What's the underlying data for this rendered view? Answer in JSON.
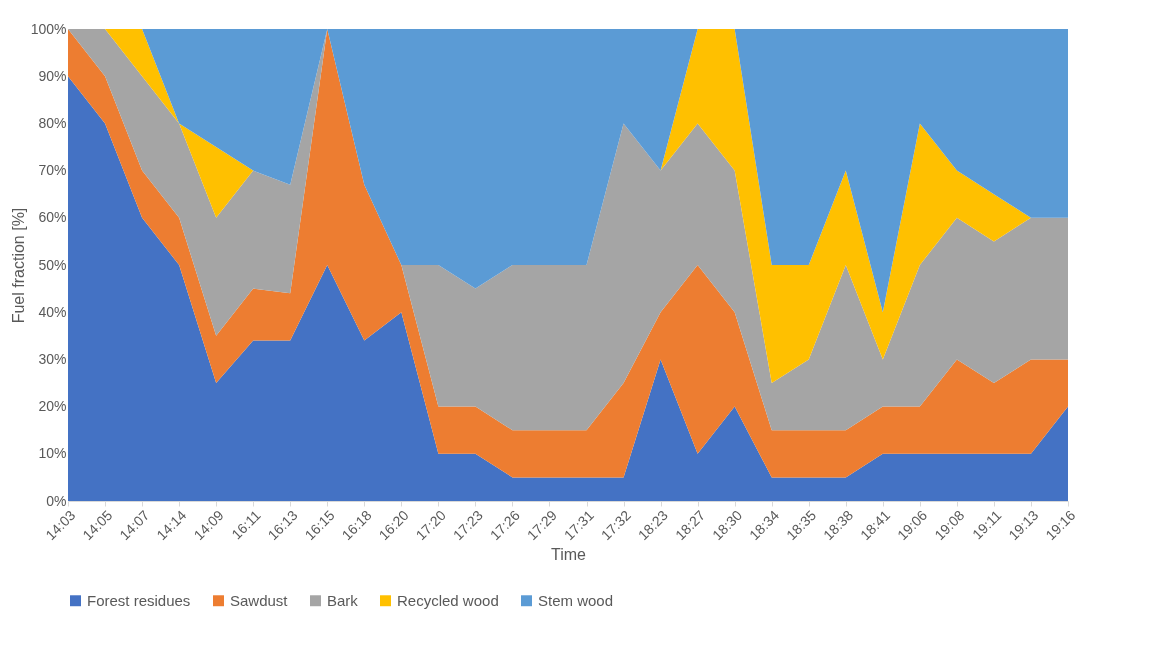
{
  "chart_data": {
    "type": "area",
    "stacked": true,
    "xlabel": "Time",
    "ylabel": "Fuel fraction [%]",
    "legend": "bottom",
    "categories": [
      "14:03",
      "14:05",
      "14:07",
      "14:14",
      "14:09",
      "16:11",
      "16:13",
      "16:15",
      "16:18",
      "16:20",
      "17:20",
      "17:23",
      "17:26",
      "17:29",
      "17:31",
      "17:32",
      "18:23",
      "18:27",
      "18:30",
      "18:34",
      "18:35",
      "18:38",
      "18:41",
      "19:06",
      "19:08",
      "19:11",
      "19:13",
      "19:16"
    ],
    "ylim": [
      0,
      100
    ],
    "yticks": [
      {
        "value": 0,
        "label": "0%"
      },
      {
        "value": 10,
        "label": "10%"
      },
      {
        "value": 20,
        "label": "20%"
      },
      {
        "value": 30,
        "label": "30%"
      },
      {
        "value": 40,
        "label": "40%"
      },
      {
        "value": 50,
        "label": "50%"
      },
      {
        "value": 60,
        "label": "60%"
      },
      {
        "value": 70,
        "label": "70%"
      },
      {
        "value": 80,
        "label": "80%"
      },
      {
        "value": 90,
        "label": "90%"
      },
      {
        "value": 100,
        "label": "100%"
      }
    ],
    "series": [
      {
        "name": "Forest residues",
        "color": "#4472c4",
        "values": [
          90,
          80,
          60,
          50,
          25,
          34,
          34,
          50,
          34,
          40,
          10,
          10,
          5,
          5,
          5,
          5,
          30,
          10,
          20,
          5,
          5,
          5,
          10,
          10,
          10,
          10,
          10,
          20
        ]
      },
      {
        "name": "Sawdust",
        "color": "#ed7d31",
        "values": [
          10,
          10,
          10,
          10,
          10,
          11,
          10,
          50,
          33,
          10,
          10,
          10,
          10,
          10,
          10,
          20,
          10,
          40,
          20,
          10,
          10,
          10,
          10,
          10,
          20,
          15,
          20,
          10
        ]
      },
      {
        "name": "Bark",
        "color": "#a5a5a5",
        "values": [
          0,
          10,
          20,
          20,
          25,
          25,
          23,
          0,
          0,
          0,
          30,
          25,
          35,
          35,
          35,
          55,
          30,
          30,
          30,
          10,
          15,
          35,
          10,
          30,
          30,
          30,
          30,
          30
        ]
      },
      {
        "name": "Recycled wood",
        "color": "#ffc000",
        "values": [
          0,
          0,
          10,
          0,
          15,
          0,
          0,
          0,
          0,
          0,
          0,
          0,
          0,
          0,
          0,
          0,
          0,
          20,
          30,
          25,
          20,
          20,
          10,
          30,
          10,
          10,
          0,
          0
        ]
      },
      {
        "name": "Stem wood",
        "color": "#5b9bd5",
        "values": [
          0,
          0,
          0,
          20,
          25,
          30,
          33,
          0,
          33,
          50,
          50,
          55,
          50,
          50,
          50,
          20,
          30,
          0,
          0,
          50,
          50,
          30,
          60,
          20,
          30,
          35,
          40,
          40
        ]
      }
    ]
  }
}
